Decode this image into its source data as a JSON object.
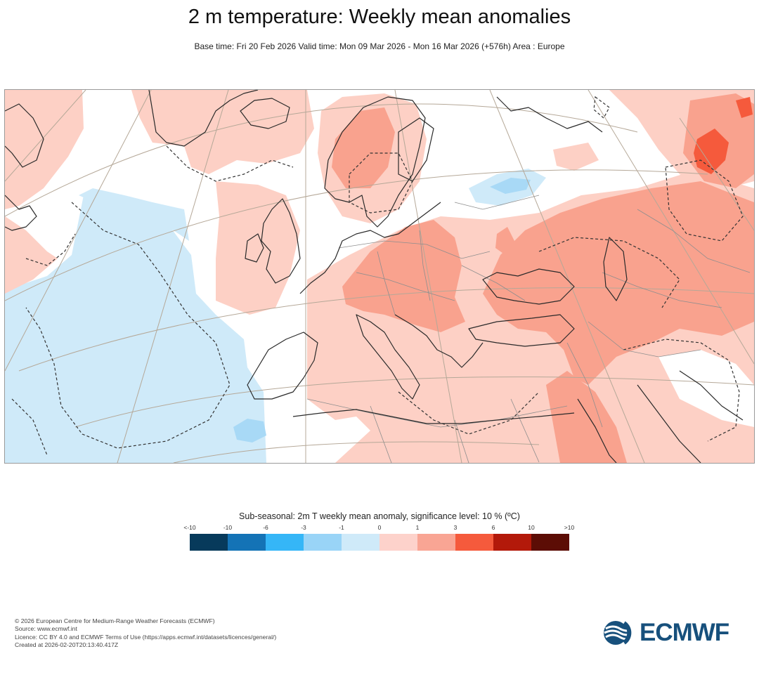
{
  "header": {
    "title": "2 m temperature: Weekly mean anomalies",
    "subtitle": "Base time: Fri 20 Feb 2026 Valid time: Mon 09 Mar 2026 - Mon 16 Mar 2026 (+576h) Area : Europe"
  },
  "map": {
    "area": "Europe",
    "colors": {
      "pos_1_3": "#fdd0c5",
      "pos_3_6": "#f9a28e",
      "pos_6_10": "#f55a3c",
      "neg_0_1": "#cfeaf9",
      "neg_1_3": "#a8d9f6",
      "coast": "#2a2a2a",
      "graticule": "#b5a898",
      "border": "#8e8e8e",
      "significance_contour": "#333333"
    }
  },
  "legend": {
    "title": "Sub-seasonal: 2m T weekly mean anomaly, significance level: 10 % (ºC)",
    "ticks": [
      "<-10",
      "-10",
      "-6",
      "-3",
      "-1",
      "0",
      "1",
      "3",
      "6",
      "10",
      ">10"
    ],
    "colors": [
      "#073a5b",
      "#1473b6",
      "#35b6f7",
      "#99d4f7",
      "#cfeaf9",
      "#fdd2cb",
      "#f9a594",
      "#f55a3c",
      "#b3190a",
      "#5c0d05"
    ]
  },
  "footer": {
    "copyright": "© 2026 European Centre for Medium-Range Weather Forecasts (ECMWF)",
    "source": "Source: www.ecmwf.int",
    "licence": "Licence: CC BY 4.0 and ECMWF Terms of Use (https://apps.ecmwf.int/datasets/licences/general/)",
    "created": "Created at 2026-02-20T20:13:40.417Z"
  },
  "logo": {
    "text": "ECMWF",
    "color": "#17507c",
    "icon": "ecmwf-logo-icon"
  }
}
